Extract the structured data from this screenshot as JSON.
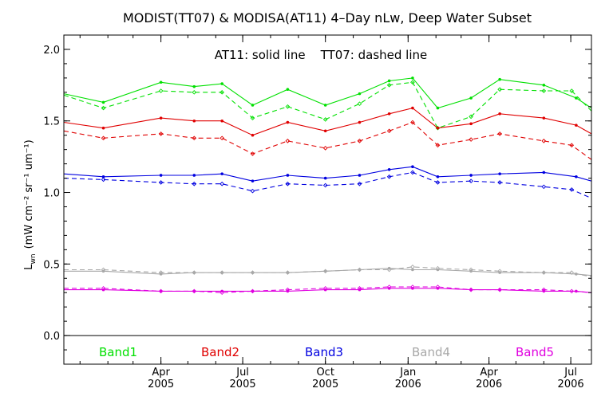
{
  "chart_data": {
    "type": "line",
    "title": "MODIST(TT07) & MODISA(AT11) 4–Day nLw, Deep Water Subset",
    "annotation": "AT11: solid line    TT07: dashed line",
    "ylabel_main": "L",
    "ylabel_sub": "wn",
    "ylabel_units": "(mW cm⁻² sr⁻¹ um⁻¹)",
    "ylim": [
      -0.2,
      2.1
    ],
    "yticks": [
      "0.0",
      "0.5",
      "1.0",
      "1.5",
      "2.0"
    ],
    "xlim": [
      "2004-12-14",
      "2006-07-24"
    ],
    "xticks": [
      {
        "date": "2005-04-01",
        "month": "Apr",
        "year": "2005"
      },
      {
        "date": "2005-07-01",
        "month": "Jul",
        "year": "2005"
      },
      {
        "date": "2005-10-01",
        "month": "Oct",
        "year": "2005"
      },
      {
        "date": "2006-01-01",
        "month": "Jan",
        "year": "2006"
      },
      {
        "date": "2006-04-01",
        "month": "Apr",
        "year": "2006"
      },
      {
        "date": "2006-07-01",
        "month": "Jul",
        "year": "2006"
      }
    ],
    "grid": false,
    "legend_position": "bottom",
    "x_solid": [
      "2004-12-14",
      "2005-01-27",
      "2005-04-01",
      "2005-05-08",
      "2005-06-08",
      "2005-07-12",
      "2005-08-20",
      "2005-10-01",
      "2005-11-08",
      "2005-12-11",
      "2006-01-06",
      "2006-02-03",
      "2006-03-12",
      "2006-04-13",
      "2006-06-01",
      "2006-07-07",
      "2006-07-24"
    ],
    "x_dashed": [
      "2004-12-14",
      "2005-01-27",
      "2005-04-01",
      "2005-05-08",
      "2005-06-08",
      "2005-07-12",
      "2005-08-20",
      "2005-10-01",
      "2005-11-08",
      "2005-12-11",
      "2006-01-06",
      "2006-02-03",
      "2006-03-12",
      "2006-04-13",
      "2006-06-01",
      "2006-07-02",
      "2006-07-24"
    ],
    "series": [
      {
        "name": "Band1",
        "color": "#00e000",
        "solid": [
          1.69,
          1.63,
          1.77,
          1.74,
          1.76,
          1.61,
          1.72,
          1.61,
          1.69,
          1.78,
          1.8,
          1.59,
          1.66,
          1.79,
          1.75,
          1.66,
          1.59
        ],
        "dashed": [
          1.68,
          1.59,
          1.71,
          1.7,
          1.7,
          1.52,
          1.6,
          1.51,
          1.62,
          1.75,
          1.77,
          1.45,
          1.53,
          1.72,
          1.71,
          1.71,
          1.57
        ]
      },
      {
        "name": "Band2",
        "color": "#e00000",
        "solid": [
          1.49,
          1.45,
          1.52,
          1.5,
          1.5,
          1.4,
          1.49,
          1.43,
          1.49,
          1.55,
          1.59,
          1.45,
          1.48,
          1.55,
          1.52,
          1.47,
          1.41
        ],
        "dashed": [
          1.43,
          1.38,
          1.41,
          1.38,
          1.38,
          1.27,
          1.36,
          1.31,
          1.36,
          1.43,
          1.49,
          1.33,
          1.37,
          1.41,
          1.36,
          1.33,
          1.23
        ]
      },
      {
        "name": "Band3",
        "color": "#0000e0",
        "solid": [
          1.13,
          1.11,
          1.12,
          1.12,
          1.13,
          1.08,
          1.12,
          1.1,
          1.12,
          1.16,
          1.18,
          1.11,
          1.12,
          1.13,
          1.14,
          1.11,
          1.08
        ],
        "dashed": [
          1.1,
          1.09,
          1.07,
          1.06,
          1.06,
          1.01,
          1.06,
          1.05,
          1.06,
          1.11,
          1.14,
          1.07,
          1.08,
          1.07,
          1.04,
          1.02,
          0.96
        ]
      },
      {
        "name": "Band4",
        "color": "#a8a8a8",
        "solid": [
          0.45,
          0.45,
          0.43,
          0.44,
          0.44,
          0.44,
          0.44,
          0.45,
          0.46,
          0.47,
          0.46,
          0.46,
          0.45,
          0.44,
          0.44,
          0.43,
          0.42
        ],
        "dashed": [
          0.46,
          0.46,
          0.44,
          0.44,
          0.44,
          0.44,
          0.44,
          0.45,
          0.46,
          0.46,
          0.48,
          0.47,
          0.46,
          0.45,
          0.44,
          0.44,
          0.41
        ]
      },
      {
        "name": "Band5",
        "color": "#e000e0",
        "solid": [
          0.32,
          0.32,
          0.31,
          0.31,
          0.31,
          0.31,
          0.31,
          0.32,
          0.32,
          0.33,
          0.33,
          0.33,
          0.32,
          0.32,
          0.31,
          0.31,
          0.3
        ],
        "dashed": [
          0.33,
          0.33,
          0.31,
          0.31,
          0.3,
          0.31,
          0.32,
          0.33,
          0.33,
          0.34,
          0.34,
          0.34,
          0.32,
          0.32,
          0.32,
          0.31,
          0.3
        ]
      }
    ]
  }
}
